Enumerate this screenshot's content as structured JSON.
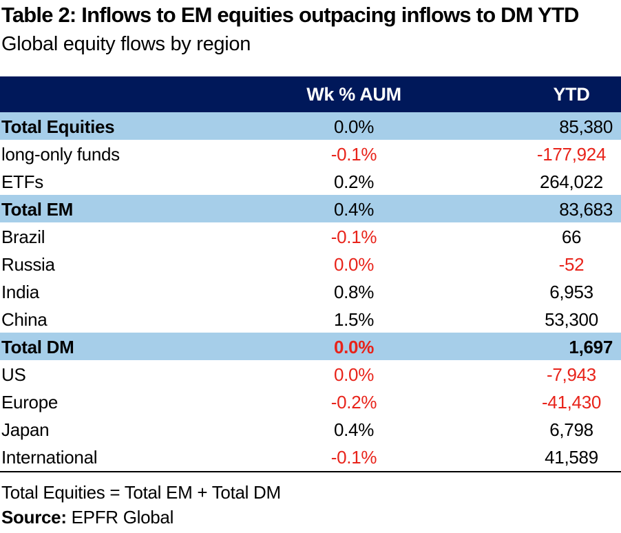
{
  "title": "Table 2: Inflows to EM equities  outpacing inflows to DM YTD",
  "subtitle": "Global equity flows by region",
  "table": {
    "columns": [
      "",
      "Wk % AUM",
      "YTD"
    ],
    "rows": [
      {
        "label": "Total Equities",
        "wk": "0.0%",
        "ytd": "85,380",
        "total": true
      },
      {
        "label": "long-only funds",
        "wk": "-0.1%",
        "ytd": "-177,924"
      },
      {
        "label": "ETFs",
        "wk": "0.2%",
        "ytd": "264,022"
      },
      {
        "label": "Total EM",
        "wk": "0.4%",
        "ytd": "83,683",
        "total": true
      },
      {
        "label": "Brazil",
        "wk": "-0.1%",
        "ytd": "66"
      },
      {
        "label": "Russia",
        "wk": "0.0%",
        "ytd": "-52"
      },
      {
        "label": "India",
        "wk": "0.8%",
        "ytd": "6,953"
      },
      {
        "label": "China",
        "wk": "1.5%",
        "ytd": "53,300"
      },
      {
        "label": "Total DM",
        "wk": "0.0%",
        "ytd": "1,697",
        "total": true
      },
      {
        "label": "US",
        "wk": "0.0%",
        "ytd": "-7,943"
      },
      {
        "label": "Europe",
        "wk": "-0.2%",
        "ytd": "-41,430"
      },
      {
        "label": "Japan",
        "wk": "0.4%",
        "ytd": "6,798"
      },
      {
        "label": "International",
        "wk": "-0.1%",
        "ytd": "41,589"
      }
    ]
  },
  "footnote": "Total Equities = Total  EM + Total DM",
  "source": {
    "label": "Source:",
    "text": "EPFR Global"
  },
  "colors": {
    "header_bg": "#00185a",
    "total_row_bg": "#a6cee9",
    "negative": "#e8231a"
  }
}
